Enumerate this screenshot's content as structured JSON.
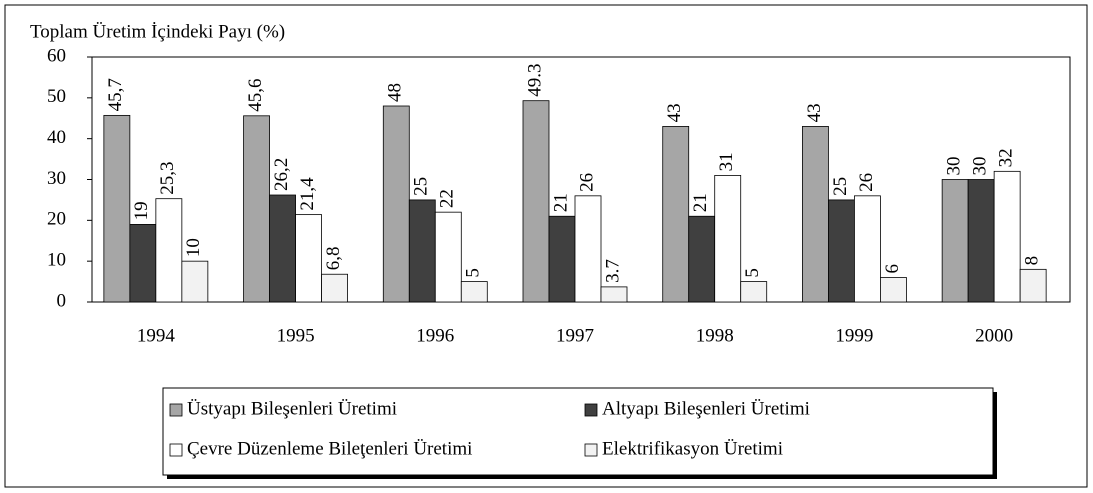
{
  "chart_data": {
    "type": "bar",
    "title": "Toplam Üretim İçindeki Payı (%)",
    "categories": [
      "1994",
      "1995",
      "1996",
      "1997",
      "1998",
      "1999",
      "2000"
    ],
    "series": [
      {
        "name": "Üstyapı Bileşenleri Üretimi",
        "color": "#a6a6a6",
        "values": [
          45.7,
          45.6,
          48,
          49.3,
          43,
          43,
          30
        ],
        "value_labels": [
          "45,7",
          "45,6",
          "48",
          "49.3",
          "43",
          "43",
          "30"
        ]
      },
      {
        "name": "Altyapı Bileşenleri Üretimi",
        "color": "#404040",
        "values": [
          19,
          26.2,
          25,
          21,
          21,
          25,
          30
        ],
        "value_labels": [
          "19",
          "26,2",
          "25",
          "21",
          "21",
          "25",
          "30"
        ]
      },
      {
        "name": "Çevre Düzenleme Bileţenleri Üretimi",
        "color": "#ffffff",
        "values": [
          25.3,
          21.4,
          22,
          26,
          31,
          26,
          32
        ],
        "value_labels": [
          "25,3",
          "21,4",
          "22",
          "26",
          "31",
          "26",
          "32"
        ]
      },
      {
        "name": "Elektrifikasyon Üretimi",
        "color": "#f2f2f2",
        "values": [
          10,
          6.8,
          5,
          3.7,
          5,
          6,
          8
        ],
        "value_labels": [
          "10",
          "6,8",
          "5",
          "3.7",
          "5",
          "6",
          "8"
        ]
      }
    ],
    "ylim": [
      0,
      60
    ],
    "yticks": [
      0,
      10,
      20,
      30,
      40,
      50,
      60
    ],
    "legend": "bottom"
  }
}
